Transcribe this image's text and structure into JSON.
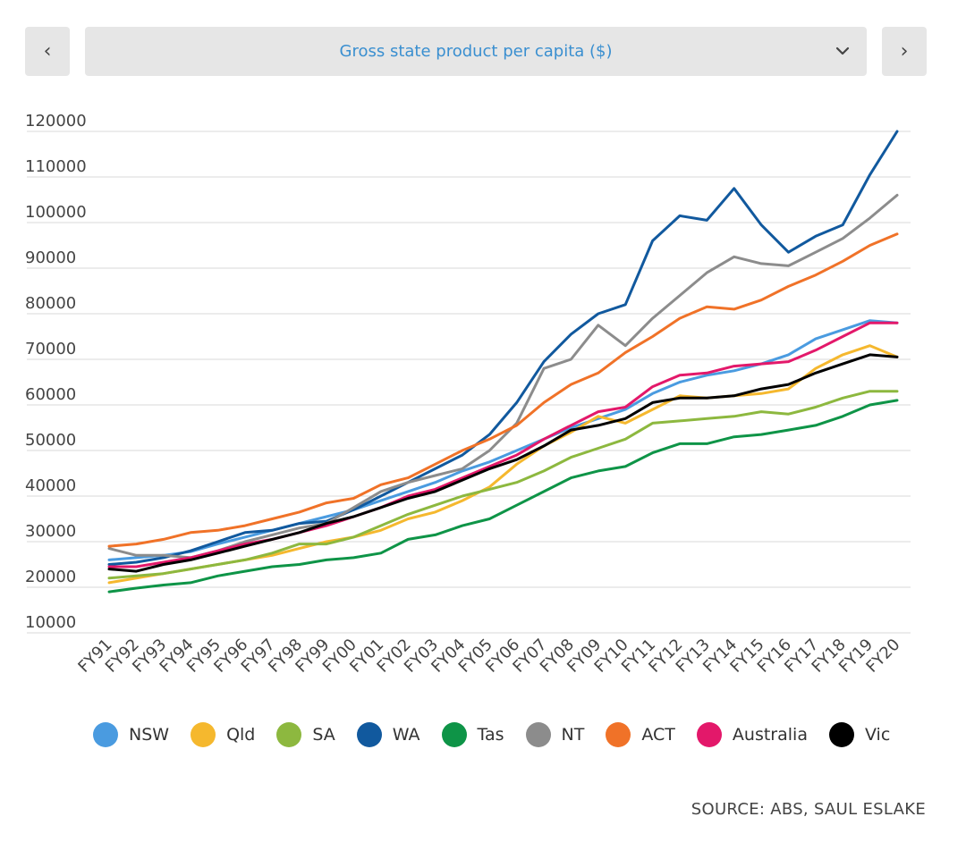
{
  "nav": {
    "prev_glyph": "‹",
    "next_glyph": "›"
  },
  "selector": {
    "label": "Gross state product per capita ($)",
    "chevron_glyph": "⌄"
  },
  "source": "SOURCE: ABS, SAUL ESLAKE",
  "chart_data": {
    "type": "line",
    "title": "Gross state product per capita ($)",
    "xlabel": "",
    "ylabel": "",
    "ylim": [
      10000,
      120000
    ],
    "yticks": [
      "120000",
      "110000",
      "100000",
      "90000",
      "80000",
      "70000",
      "60000",
      "50000",
      "40000",
      "30000",
      "20000",
      "10000"
    ],
    "grid": true,
    "legend_position": "bottom",
    "categories": [
      "FY91",
      "FY92",
      "FY93",
      "FY94",
      "FY95",
      "FY96",
      "FY97",
      "FY98",
      "FY99",
      "FY00",
      "FY01",
      "FY02",
      "FY03",
      "FY04",
      "FY05",
      "FY06",
      "FY07",
      "FY08",
      "FY09",
      "FY10",
      "FY11",
      "FY12",
      "FY13",
      "FY14",
      "FY15",
      "FY16",
      "FY17",
      "FY18",
      "FY19",
      "FY20"
    ],
    "series": [
      {
        "name": "NSW",
        "color": "#4a9be0",
        "values": [
          26000,
          26500,
          27000,
          27800,
          29500,
          31000,
          32500,
          34000,
          35500,
          37000,
          39000,
          41000,
          43000,
          45500,
          47500,
          50000,
          52500,
          55000,
          57000,
          59000,
          62500,
          65000,
          66500,
          67500,
          69000,
          71000,
          74500,
          76500,
          78500,
          78000
        ]
      },
      {
        "name": "Qld",
        "color": "#f5b82e",
        "values": [
          21000,
          22000,
          23000,
          24000,
          25000,
          26000,
          27000,
          28500,
          30000,
          31000,
          32500,
          35000,
          36500,
          39000,
          42000,
          47000,
          51000,
          54000,
          57500,
          56000,
          59000,
          62000,
          61500,
          62000,
          62500,
          63500,
          68000,
          71000,
          73000,
          70500
        ]
      },
      {
        "name": "SA",
        "color": "#8db83f",
        "values": [
          22000,
          22500,
          23000,
          24000,
          25000,
          26000,
          27500,
          29500,
          29500,
          31000,
          33500,
          36000,
          38000,
          40000,
          41500,
          43000,
          45500,
          48500,
          50500,
          52500,
          56000,
          56500,
          57000,
          57500,
          58500,
          58000,
          59500,
          61500,
          63000,
          63000
        ]
      },
      {
        "name": "WA",
        "color": "#11599e",
        "values": [
          25000,
          25500,
          26500,
          28000,
          30000,
          32000,
          32500,
          34000,
          34500,
          37000,
          40000,
          43000,
          46000,
          49000,
          53500,
          60500,
          69500,
          75500,
          80000,
          82000,
          96000,
          101500,
          100500,
          107500,
          99500,
          93500,
          97000,
          99500,
          110500,
          120000
        ]
      },
      {
        "name": "Tas",
        "color": "#0e9447",
        "values": [
          19000,
          19800,
          20500,
          21000,
          22500,
          23500,
          24500,
          25000,
          26000,
          26500,
          27500,
          30500,
          31500,
          33500,
          35000,
          38000,
          41000,
          44000,
          45500,
          46500,
          49500,
          51500,
          51500,
          53000,
          53500,
          54500,
          55500,
          57500,
          60000,
          61000
        ]
      },
      {
        "name": "NT",
        "color": "#8c8c8c",
        "values": [
          28500,
          27000,
          27000,
          26500,
          28000,
          30000,
          31500,
          33000,
          34000,
          37500,
          41000,
          43000,
          44500,
          46000,
          50000,
          56000,
          68000,
          70000,
          77500,
          73000,
          79000,
          84000,
          89000,
          92500,
          91000,
          90500,
          93500,
          96500,
          101000,
          106000
        ]
      },
      {
        "name": "ACT",
        "color": "#f07228",
        "values": [
          29000,
          29500,
          30500,
          32000,
          32500,
          33500,
          35000,
          36500,
          38500,
          39500,
          42500,
          44000,
          47000,
          50000,
          52500,
          55500,
          60500,
          64500,
          67000,
          71500,
          75000,
          79000,
          81500,
          81000,
          83000,
          86000,
          88500,
          91500,
          95000,
          97500
        ]
      },
      {
        "name": "Australia",
        "color": "#e3186a",
        "values": [
          24500,
          24500,
          25500,
          26500,
          28000,
          29500,
          30500,
          32000,
          33500,
          35500,
          37500,
          40000,
          41500,
          44000,
          46500,
          49000,
          52500,
          55500,
          58500,
          59500,
          64000,
          66500,
          67000,
          68500,
          69000,
          69500,
          72000,
          75000,
          78000,
          78000
        ]
      },
      {
        "name": "Vic",
        "color": "#000000",
        "values": [
          24000,
          23500,
          25000,
          26000,
          27500,
          29000,
          30500,
          32000,
          34000,
          35500,
          37500,
          39500,
          41000,
          43500,
          46000,
          48000,
          51000,
          54500,
          55500,
          57000,
          60500,
          61500,
          61500,
          62000,
          63500,
          64500,
          67000,
          69000,
          71000,
          70500
        ]
      }
    ]
  }
}
